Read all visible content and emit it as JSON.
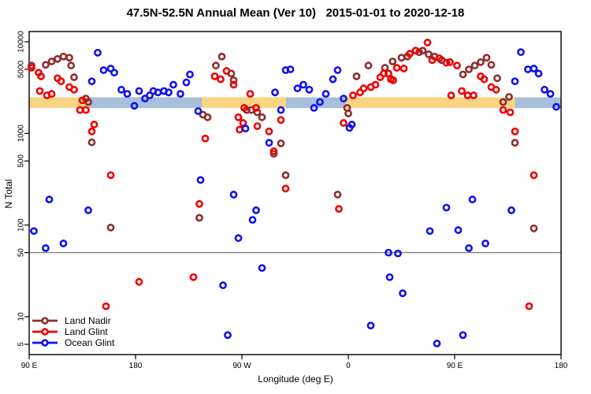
{
  "header": {
    "title": "47.5N-52.5N Annual Mean (Ver 10)   2015-01-01 to 2020-12-18"
  },
  "colors": {
    "land_nadir": "#8f2d2d",
    "land_glint": "#ee0000",
    "ocean_glint": "#1111ee",
    "band_orange": "#f8d584",
    "band_blue": "#a9bedb",
    "ref_line": "#808080",
    "axis": "#000000"
  },
  "legend": {
    "items": [
      {
        "label": "Land Nadir",
        "color_key": "land_nadir"
      },
      {
        "label": "Land Glint",
        "color_key": "land_glint"
      },
      {
        "label": "Ocean Glint",
        "color_key": "ocean_glint"
      }
    ]
  },
  "chart_data": {
    "type": "scatter",
    "title": "47.5N-52.5N Annual Mean (Ver 10)   2015-01-01 to 2020-12-18",
    "xlabel": "Longitude (deg E)",
    "ylabel": "N Total",
    "x_axis": {
      "note": "x is degrees east of left edge; left edge = 90E, axis wraps 450 degrees",
      "span_deg": 450,
      "ticks": [
        {
          "pos": 0,
          "label": "90 E"
        },
        {
          "pos": 90,
          "label": "180"
        },
        {
          "pos": 180,
          "label": "90 W"
        },
        {
          "pos": 270,
          "label": "0"
        },
        {
          "pos": 360,
          "label": "90 E"
        },
        {
          "pos": 450,
          "label": "180"
        }
      ]
    },
    "y_axis": {
      "scale": "log10",
      "tick_values": [
        5,
        10,
        50,
        100,
        500,
        1000,
        5000,
        10000
      ],
      "tick_labels": [
        "5",
        "10",
        "50",
        "100",
        "500",
        "1000",
        "5000",
        "10000"
      ],
      "range": [
        3.9,
        12900
      ]
    },
    "reference_line_value": 50,
    "bands": {
      "value_range": [
        1890,
        2480
      ],
      "segments": [
        {
          "from": 0,
          "to": 50.7,
          "color_key": "band_orange"
        },
        {
          "from": 50.7,
          "to": 146,
          "color_key": "band_blue"
        },
        {
          "from": 146,
          "to": 217.3,
          "color_key": "band_orange"
        },
        {
          "from": 217.3,
          "to": 267.3,
          "color_key": "band_blue"
        },
        {
          "from": 267.3,
          "to": 411,
          "color_key": "band_orange"
        },
        {
          "from": 411,
          "to": 450,
          "color_key": "band_blue"
        }
      ]
    },
    "series": [
      {
        "name": "Land Nadir",
        "color_key": "land_nadir",
        "points": [
          [
            2,
            5500
          ],
          [
            14,
            5600
          ],
          [
            19,
            6100
          ],
          [
            24,
            6500
          ],
          [
            29,
            6900
          ],
          [
            34,
            6700
          ],
          [
            35.5,
            5500
          ],
          [
            38,
            4100
          ],
          [
            48,
            2400
          ],
          [
            50,
            2200
          ],
          [
            147,
            1600
          ],
          [
            151,
            1500
          ],
          [
            53,
            800
          ],
          [
            69,
            94
          ],
          [
            144,
            120
          ],
          [
            163,
            6900
          ],
          [
            158,
            5500
          ],
          [
            171,
            4500
          ],
          [
            173,
            3800
          ],
          [
            184,
            1800
          ],
          [
            188,
            1800
          ],
          [
            193,
            1700
          ],
          [
            197,
            1500
          ],
          [
            207,
            600
          ],
          [
            213,
            780
          ],
          [
            217,
            350
          ],
          [
            261,
            215
          ],
          [
            277,
            4200
          ],
          [
            287,
            5500
          ],
          [
            269,
            1900
          ],
          [
            270,
            1650
          ],
          [
            301,
            5200
          ],
          [
            307.5,
            6100
          ],
          [
            315,
            6700
          ],
          [
            320,
            6900
          ],
          [
            330,
            7700
          ],
          [
            333,
            8000
          ],
          [
            338,
            7300
          ],
          [
            343,
            6900
          ],
          [
            349,
            6300
          ],
          [
            367,
            4400
          ],
          [
            372,
            5000
          ],
          [
            377,
            5500
          ],
          [
            382,
            6000
          ],
          [
            387,
            6700
          ],
          [
            391,
            5600
          ],
          [
            396,
            4000
          ],
          [
            406,
            2500
          ],
          [
            401,
            2200
          ],
          [
            411,
            790
          ],
          [
            427,
            92
          ]
        ]
      },
      {
        "name": "Land Glint",
        "color_key": "land_glint",
        "points": [
          [
            2,
            5200
          ],
          [
            8,
            4600
          ],
          [
            10,
            4200
          ],
          [
            24,
            4000
          ],
          [
            27,
            3700
          ],
          [
            34,
            3200
          ],
          [
            38,
            3000
          ],
          [
            9,
            2900
          ],
          [
            15,
            2600
          ],
          [
            19,
            2700
          ],
          [
            45,
            2300
          ],
          [
            43,
            1800
          ],
          [
            48,
            1800
          ],
          [
            55,
            1250
          ],
          [
            53,
            1050
          ],
          [
            69,
            350
          ],
          [
            93,
            24
          ],
          [
            65,
            13
          ],
          [
            149,
            880
          ],
          [
            144,
            170
          ],
          [
            139,
            27
          ],
          [
            157,
            4200
          ],
          [
            162,
            3900
          ],
          [
            167,
            4800
          ],
          [
            173,
            3400
          ],
          [
            187,
            2700
          ],
          [
            182,
            1900
          ],
          [
            192,
            1900
          ],
          [
            213,
            1400
          ],
          [
            177,
            1500
          ],
          [
            181,
            1300
          ],
          [
            178,
            1100
          ],
          [
            193,
            1200
          ],
          [
            203,
            1050
          ],
          [
            207,
            640
          ],
          [
            217,
            250
          ],
          [
            262,
            150
          ],
          [
            266,
            1300
          ],
          [
            274,
            2600
          ],
          [
            280,
            2800
          ],
          [
            283,
            3100
          ],
          [
            289,
            3200
          ],
          [
            293,
            3400
          ],
          [
            297,
            4100
          ],
          [
            300,
            4500
          ],
          [
            304,
            4500
          ],
          [
            306,
            3900
          ],
          [
            308,
            3800
          ],
          [
            311,
            5200
          ],
          [
            317,
            5100
          ],
          [
            322,
            7400
          ],
          [
            327,
            8000
          ],
          [
            337,
            9800
          ],
          [
            341,
            6300
          ],
          [
            347,
            6600
          ],
          [
            353,
            5900
          ],
          [
            356,
            6000
          ],
          [
            362,
            5500
          ],
          [
            382,
            4200
          ],
          [
            385,
            3900
          ],
          [
            391,
            3200
          ],
          [
            395,
            3000
          ],
          [
            366,
            2900
          ],
          [
            371,
            2600
          ],
          [
            376,
            2600
          ],
          [
            357,
            2600
          ],
          [
            401,
            1800
          ],
          [
            407,
            1700
          ],
          [
            411,
            1050
          ],
          [
            427,
            350
          ],
          [
            423,
            13
          ]
        ]
      },
      {
        "name": "Ocean Glint",
        "color_key": "ocean_glint",
        "points": [
          [
            4,
            86
          ],
          [
            14,
            56
          ],
          [
            17,
            190
          ],
          [
            29,
            63
          ],
          [
            53,
            3700
          ],
          [
            58,
            7600
          ],
          [
            63,
            4900
          ],
          [
            69,
            5100
          ],
          [
            72,
            4600
          ],
          [
            50,
            145
          ],
          [
            78,
            3000
          ],
          [
            83,
            2700
          ],
          [
            89,
            2000
          ],
          [
            93,
            2900
          ],
          [
            98,
            2400
          ],
          [
            102,
            2600
          ],
          [
            105,
            2900
          ],
          [
            109,
            2800
          ],
          [
            114,
            2900
          ],
          [
            118,
            2800
          ],
          [
            122,
            3400
          ],
          [
            128,
            2700
          ],
          [
            133,
            3600
          ],
          [
            136,
            4400
          ],
          [
            143,
            1750
          ],
          [
            145,
            310
          ],
          [
            217,
            4900
          ],
          [
            221,
            5000
          ],
          [
            227,
            3100
          ],
          [
            232,
            3400
          ],
          [
            237,
            3000
          ],
          [
            208,
            2800
          ],
          [
            213,
            1800
          ],
          [
            241,
            1900
          ],
          [
            246,
            2200
          ],
          [
            251,
            2700
          ],
          [
            257,
            3900
          ],
          [
            261,
            4900
          ],
          [
            266,
            2400
          ],
          [
            273,
            1250
          ],
          [
            203,
            790
          ],
          [
            183,
            1130
          ],
          [
            271,
            1150
          ],
          [
            173,
            215
          ],
          [
            192,
            145
          ],
          [
            189,
            114
          ],
          [
            177,
            72
          ],
          [
            197,
            34
          ],
          [
            164,
            22
          ],
          [
            289,
            8
          ],
          [
            168,
            6.3
          ],
          [
            416,
            7700
          ],
          [
            422,
            5000
          ],
          [
            427,
            5100
          ],
          [
            431,
            4500
          ],
          [
            411,
            3700
          ],
          [
            436,
            3000
          ],
          [
            441,
            2700
          ],
          [
            446,
            1950
          ],
          [
            375,
            190
          ],
          [
            353,
            155
          ],
          [
            408,
            145
          ],
          [
            339,
            86
          ],
          [
            363,
            88
          ],
          [
            386,
            63
          ],
          [
            372,
            56
          ],
          [
            304,
            50
          ],
          [
            312,
            49
          ],
          [
            305,
            27
          ],
          [
            316,
            18
          ],
          [
            367,
            6.3
          ],
          [
            345,
            5.1
          ]
        ]
      }
    ]
  }
}
